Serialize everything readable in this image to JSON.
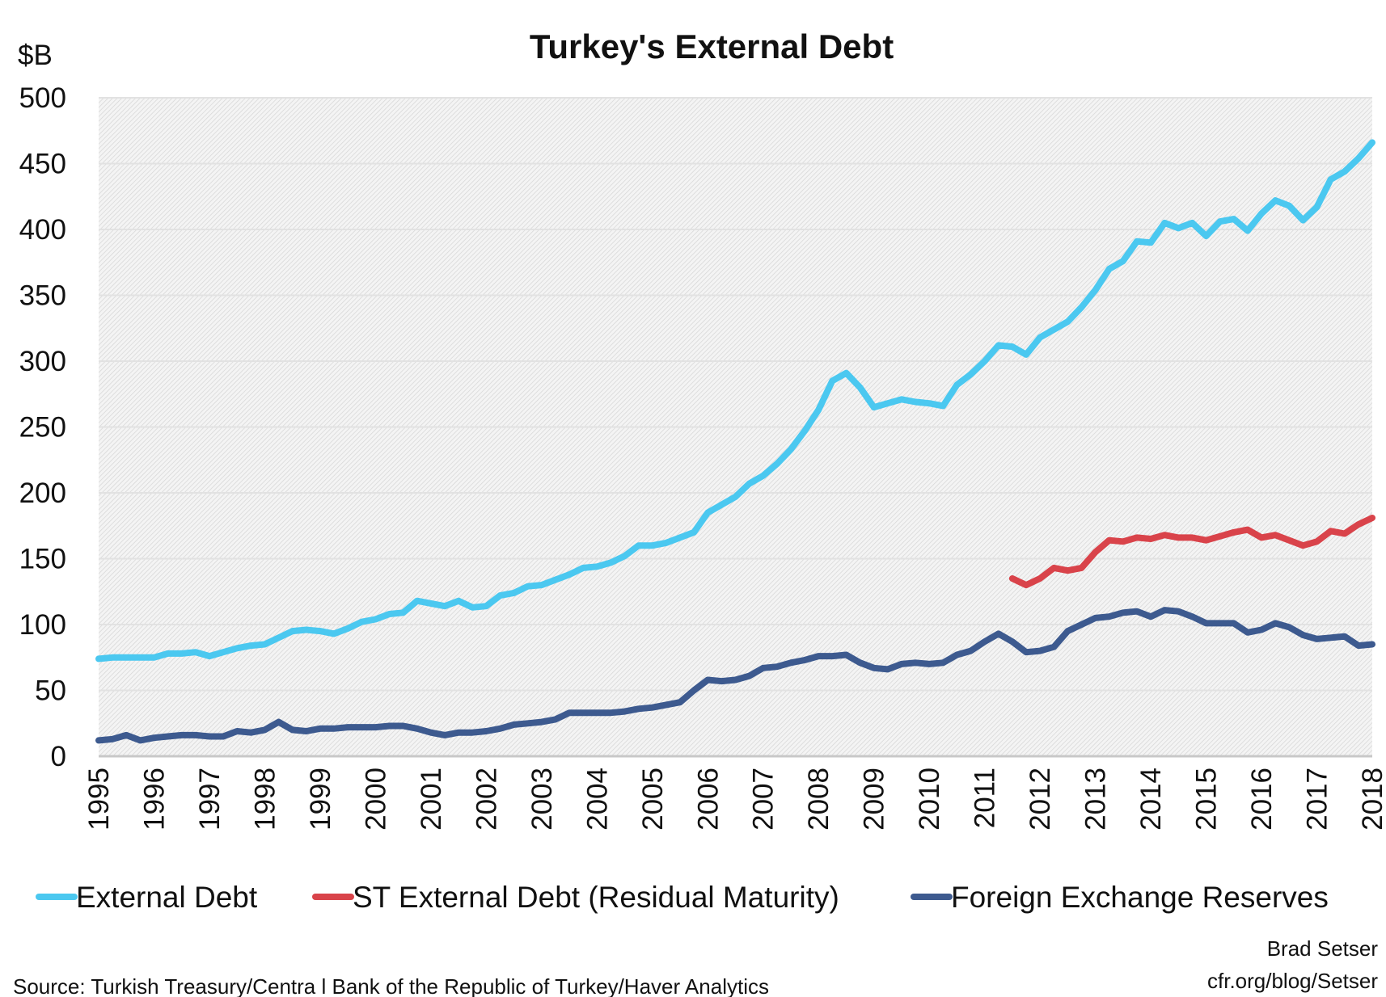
{
  "chart_data": {
    "type": "line",
    "title": "Turkey's External Debt",
    "ylabel": "$B",
    "xlabel": "",
    "ylim": [
      0,
      500
    ],
    "yticks": [
      "0",
      "50",
      "100",
      "150",
      "200",
      "250",
      "300",
      "350",
      "400",
      "450",
      "500"
    ],
    "xlim": [
      1995,
      2018
    ],
    "xticks": [
      "1995",
      "1996",
      "1997",
      "1998",
      "1999",
      "2000",
      "2001",
      "2002",
      "2003",
      "2004",
      "2005",
      "2006",
      "2007",
      "2008",
      "2009",
      "2010",
      "2011",
      "2012",
      "2013",
      "2014",
      "2015",
      "2016",
      "2017",
      "2018"
    ],
    "x_frequency": "quarterly, 1995 Q1 to 2018 Q1",
    "grid": true,
    "legend_position": "bottom",
    "series": [
      {
        "name": "External Debt",
        "color": "#4BC8F0",
        "values": [
          74,
          75,
          75,
          75,
          75,
          78,
          78,
          79,
          76,
          79,
          82,
          84,
          85,
          90,
          95,
          96,
          95,
          93,
          97,
          102,
          104,
          108,
          109,
          118,
          116,
          114,
          118,
          113,
          114,
          122,
          124,
          129,
          130,
          134,
          138,
          143,
          144,
          147,
          152,
          160,
          160,
          162,
          166,
          170,
          185,
          191,
          197,
          207,
          213,
          222,
          233,
          247,
          263,
          285,
          291,
          280,
          265,
          268,
          271,
          269,
          268,
          266,
          282,
          290,
          300,
          312,
          311,
          305,
          318,
          324,
          330,
          341,
          354,
          370,
          376,
          391,
          390,
          405,
          401,
          405,
          395,
          406,
          408,
          399,
          412,
          422,
          418,
          407,
          417,
          438,
          444,
          454,
          466
        ]
      },
      {
        "name": "ST External Debt (Residual Maturity)",
        "color": "#D9434A",
        "values": [
          null,
          null,
          null,
          null,
          null,
          null,
          null,
          null,
          null,
          null,
          null,
          null,
          null,
          null,
          null,
          null,
          null,
          null,
          null,
          null,
          null,
          null,
          null,
          null,
          null,
          null,
          null,
          null,
          null,
          null,
          null,
          null,
          null,
          null,
          null,
          null,
          null,
          null,
          null,
          null,
          null,
          null,
          null,
          null,
          null,
          null,
          null,
          null,
          null,
          null,
          null,
          null,
          null,
          null,
          null,
          null,
          null,
          null,
          null,
          null,
          null,
          null,
          null,
          null,
          null,
          null,
          135,
          130,
          135,
          143,
          141,
          143,
          155,
          164,
          163,
          166,
          165,
          168,
          166,
          166,
          164,
          167,
          170,
          172,
          166,
          168,
          164,
          160,
          163,
          171,
          169,
          176,
          181
        ]
      },
      {
        "name": "Foreign Exchange Reserves",
        "color": "#3D5A8F",
        "values": [
          12,
          13,
          16,
          12,
          14,
          15,
          16,
          16,
          15,
          15,
          19,
          18,
          20,
          26,
          20,
          19,
          21,
          21,
          22,
          22,
          22,
          23,
          23,
          21,
          18,
          16,
          18,
          18,
          19,
          21,
          24,
          25,
          26,
          28,
          33,
          33,
          33,
          33,
          34,
          36,
          37,
          39,
          41,
          50,
          58,
          57,
          58,
          61,
          67,
          68,
          71,
          73,
          76,
          76,
          77,
          71,
          67,
          66,
          70,
          71,
          70,
          71,
          77,
          80,
          87,
          93,
          87,
          79,
          80,
          83,
          95,
          100,
          105,
          106,
          109,
          110,
          106,
          111,
          110,
          106,
          101,
          101,
          101,
          94,
          96,
          101,
          98,
          92,
          89,
          90,
          91,
          84,
          85
        ]
      }
    ]
  },
  "footer": {
    "source": "Source: Turkish Treasury/Centra l Bank of the Republic of Turkey/Haver Analytics",
    "author": "Brad Setser",
    "site": "cfr.org/blog/Setser"
  }
}
